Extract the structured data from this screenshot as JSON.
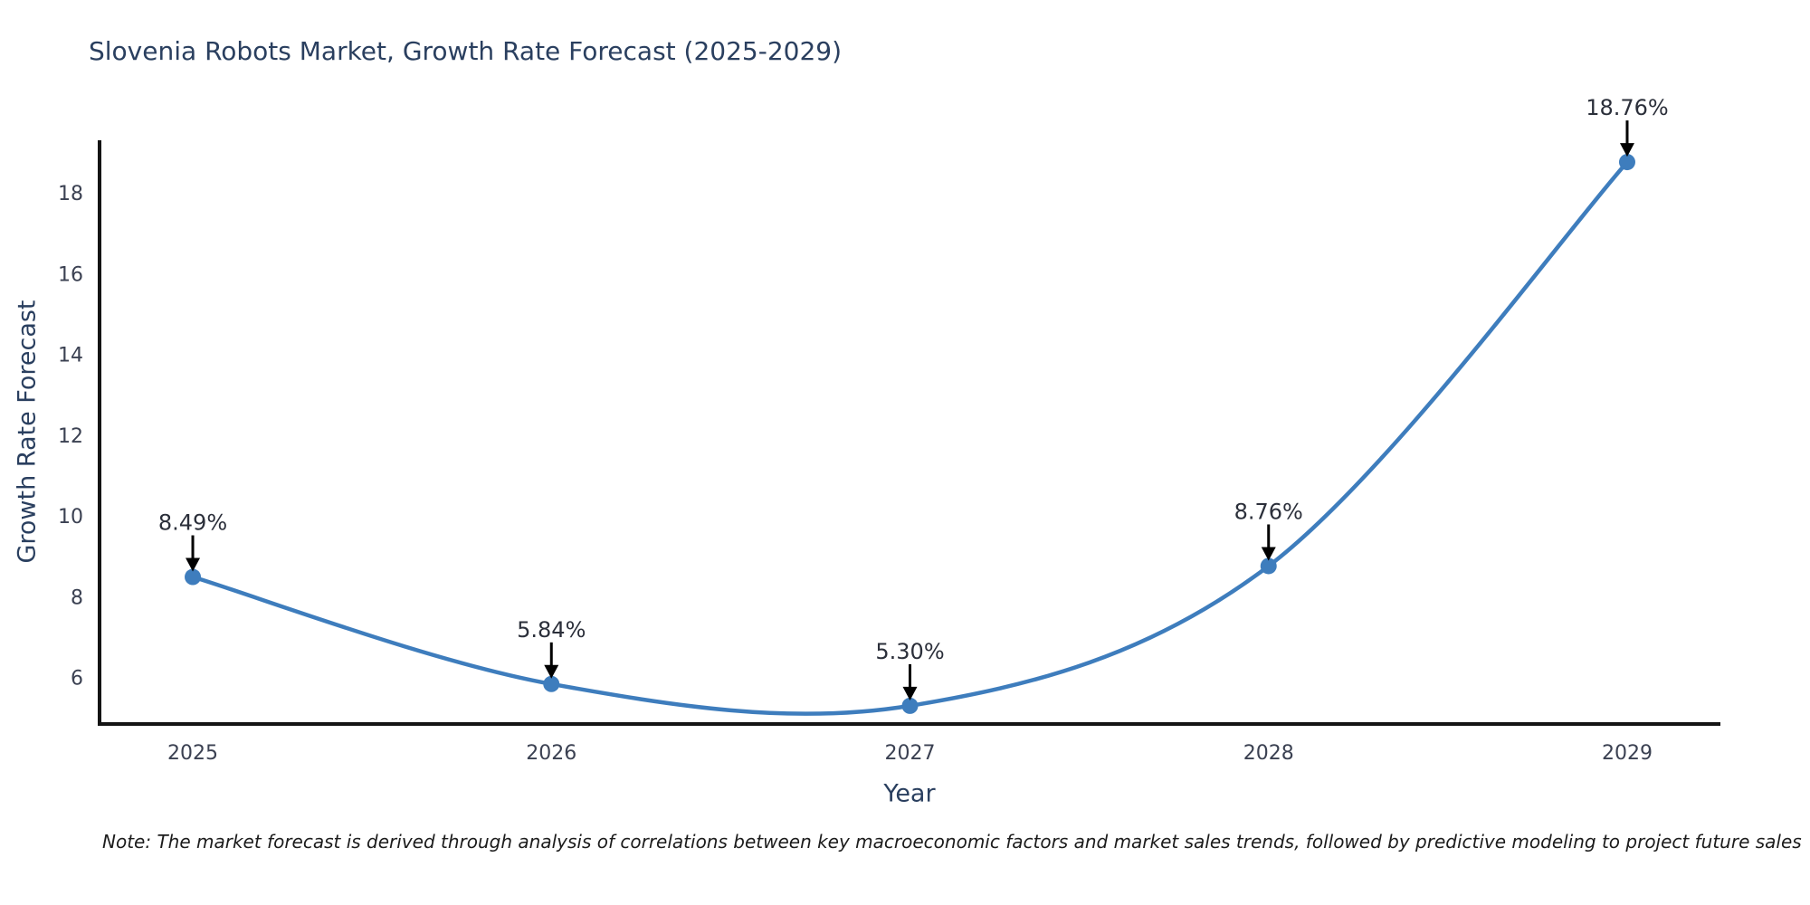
{
  "title": "Slovenia Robots Market, Growth Rate Forecast (2025-2029)",
  "note": "Note: The market forecast is derived through analysis of correlations between key macroeconomic factors and market sales trends, followed by predictive modeling to project future sales",
  "chart_data": {
    "type": "line",
    "title": "Slovenia Robots Market, Growth Rate Forecast (2025-2029)",
    "xlabel": "Year",
    "ylabel": "Growth Rate Forecast",
    "categories": [
      "2025",
      "2026",
      "2027",
      "2028",
      "2029"
    ],
    "x": [
      2025,
      2026,
      2027,
      2028,
      2029
    ],
    "values": [
      8.49,
      5.84,
      5.3,
      8.76,
      18.76
    ],
    "point_labels": [
      "8.49%",
      "5.84%",
      "5.30%",
      "8.76%",
      "18.76%"
    ],
    "y_ticks": [
      6,
      8,
      10,
      12,
      14,
      16,
      18
    ],
    "ylim": [
      4.85,
      19.3
    ],
    "xlim": [
      2024.74,
      2029.26
    ],
    "grid": false,
    "legend": false,
    "smooth": true,
    "line_color": "#3e7dbd",
    "marker_color": "#3e7dbd",
    "arrow_color": "#000000",
    "spine_color": "#141414",
    "text_color": "#2a3f5f",
    "background_color": "#ffffff"
  }
}
